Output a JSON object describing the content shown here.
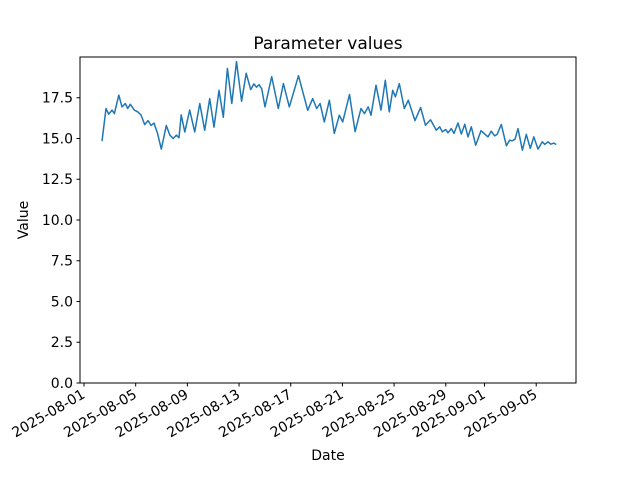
{
  "chart_data": {
    "type": "line",
    "title": "Parameter values",
    "xlabel": "Date",
    "ylabel": "Value",
    "line_color": "#1f77b4",
    "line_width": 1.5,
    "grid": false,
    "legend": false,
    "x_unit": "days since 2025-08-01 00:00",
    "xlim": [
      -0.31,
      38.08
    ],
    "ylim": [
      0,
      20
    ],
    "x_ticks": [
      {
        "t": 0,
        "label": "2025-08-01"
      },
      {
        "t": 4,
        "label": "2025-08-05"
      },
      {
        "t": 8,
        "label": "2025-08-09"
      },
      {
        "t": 12,
        "label": "2025-08-13"
      },
      {
        "t": 16,
        "label": "2025-08-17"
      },
      {
        "t": 20,
        "label": "2025-08-21"
      },
      {
        "t": 24,
        "label": "2025-08-25"
      },
      {
        "t": 28,
        "label": "2025-08-29"
      },
      {
        "t": 31,
        "label": "2025-09-01"
      },
      {
        "t": 35,
        "label": "2025-09-05"
      }
    ],
    "y_ticks": [
      {
        "v": 0,
        "label": "0.0"
      },
      {
        "v": 2.5,
        "label": "2.5"
      },
      {
        "v": 5,
        "label": "5.0"
      },
      {
        "v": 7.5,
        "label": "7.5"
      },
      {
        "v": 10,
        "label": "10.0"
      },
      {
        "v": 12.5,
        "label": "12.5"
      },
      {
        "v": 15,
        "label": "15.0"
      },
      {
        "v": 17.5,
        "label": "17.5"
      }
    ],
    "points": [
      [
        1.4,
        14.88
      ],
      [
        1.7,
        16.84
      ],
      [
        1.91,
        16.49
      ],
      [
        2.17,
        16.74
      ],
      [
        2.35,
        16.53
      ],
      [
        2.69,
        17.66
      ],
      [
        2.94,
        16.94
      ],
      [
        3.2,
        17.15
      ],
      [
        3.38,
        16.84
      ],
      [
        3.58,
        17.1
      ],
      [
        3.89,
        16.74
      ],
      [
        4.16,
        16.63
      ],
      [
        4.41,
        16.45
      ],
      [
        4.7,
        15.85
      ],
      [
        4.95,
        16.1
      ],
      [
        5.2,
        15.8
      ],
      [
        5.42,
        15.95
      ],
      [
        5.7,
        15.3
      ],
      [
        5.98,
        14.35
      ],
      [
        6.37,
        15.8
      ],
      [
        6.65,
        15.2
      ],
      [
        6.9,
        15.0
      ],
      [
        7.15,
        15.2
      ],
      [
        7.35,
        15.05
      ],
      [
        7.52,
        16.45
      ],
      [
        7.8,
        15.4
      ],
      [
        8.18,
        16.75
      ],
      [
        8.57,
        15.4
      ],
      [
        8.96,
        17.15
      ],
      [
        9.34,
        15.5
      ],
      [
        9.73,
        17.45
      ],
      [
        10.06,
        15.7
      ],
      [
        10.45,
        17.95
      ],
      [
        10.78,
        16.3
      ],
      [
        11.1,
        19.3
      ],
      [
        11.44,
        17.15
      ],
      [
        11.8,
        19.72
      ],
      [
        12.2,
        17.28
      ],
      [
        12.55,
        19.0
      ],
      [
        12.9,
        18.0
      ],
      [
        13.15,
        18.35
      ],
      [
        13.35,
        18.15
      ],
      [
        13.55,
        18.3
      ],
      [
        13.75,
        18.05
      ],
      [
        14.01,
        16.94
      ],
      [
        14.53,
        18.8
      ],
      [
        15.04,
        16.84
      ],
      [
        15.43,
        18.37
      ],
      [
        15.89,
        16.94
      ],
      [
        16.6,
        18.85
      ],
      [
        17.31,
        16.73
      ],
      [
        17.7,
        17.45
      ],
      [
        18.01,
        16.84
      ],
      [
        18.27,
        17.15
      ],
      [
        18.6,
        16.02
      ],
      [
        18.99,
        17.35
      ],
      [
        19.37,
        15.31
      ],
      [
        19.76,
        16.43
      ],
      [
        20.02,
        16.02
      ],
      [
        20.55,
        17.7
      ],
      [
        20.98,
        15.42
      ],
      [
        21.44,
        16.84
      ],
      [
        21.7,
        16.53
      ],
      [
        22.0,
        16.94
      ],
      [
        22.21,
        16.43
      ],
      [
        22.6,
        18.27
      ],
      [
        22.99,
        16.74
      ],
      [
        23.32,
        18.57
      ],
      [
        23.63,
        16.63
      ],
      [
        23.89,
        17.96
      ],
      [
        24.1,
        17.56
      ],
      [
        24.4,
        18.37
      ],
      [
        24.79,
        16.84
      ],
      [
        25.1,
        17.35
      ],
      [
        25.62,
        16.1
      ],
      [
        26.05,
        16.9
      ],
      [
        26.43,
        15.81
      ],
      [
        26.82,
        16.15
      ],
      [
        27.27,
        15.51
      ],
      [
        27.53,
        15.72
      ],
      [
        27.73,
        15.41
      ],
      [
        28.0,
        15.55
      ],
      [
        28.17,
        15.35
      ],
      [
        28.43,
        15.61
      ],
      [
        28.64,
        15.31
      ],
      [
        28.95,
        15.96
      ],
      [
        29.2,
        15.27
      ],
      [
        29.47,
        15.88
      ],
      [
        29.72,
        15.1
      ],
      [
        29.98,
        15.72
      ],
      [
        30.32,
        14.59
      ],
      [
        30.73,
        15.48
      ],
      [
        31.27,
        15.1
      ],
      [
        31.52,
        15.45
      ],
      [
        31.79,
        15.16
      ],
      [
        31.97,
        15.25
      ],
      [
        32.3,
        15.86
      ],
      [
        32.69,
        14.55
      ],
      [
        32.95,
        14.9
      ],
      [
        33.13,
        14.85
      ],
      [
        33.36,
        14.95
      ],
      [
        33.59,
        15.61
      ],
      [
        33.93,
        14.28
      ],
      [
        34.23,
        15.25
      ],
      [
        34.54,
        14.39
      ],
      [
        34.81,
        15.1
      ],
      [
        35.14,
        14.35
      ],
      [
        35.47,
        14.8
      ],
      [
        35.66,
        14.64
      ],
      [
        35.91,
        14.8
      ],
      [
        36.12,
        14.65
      ],
      [
        36.38,
        14.72
      ],
      [
        36.51,
        14.65
      ]
    ]
  }
}
